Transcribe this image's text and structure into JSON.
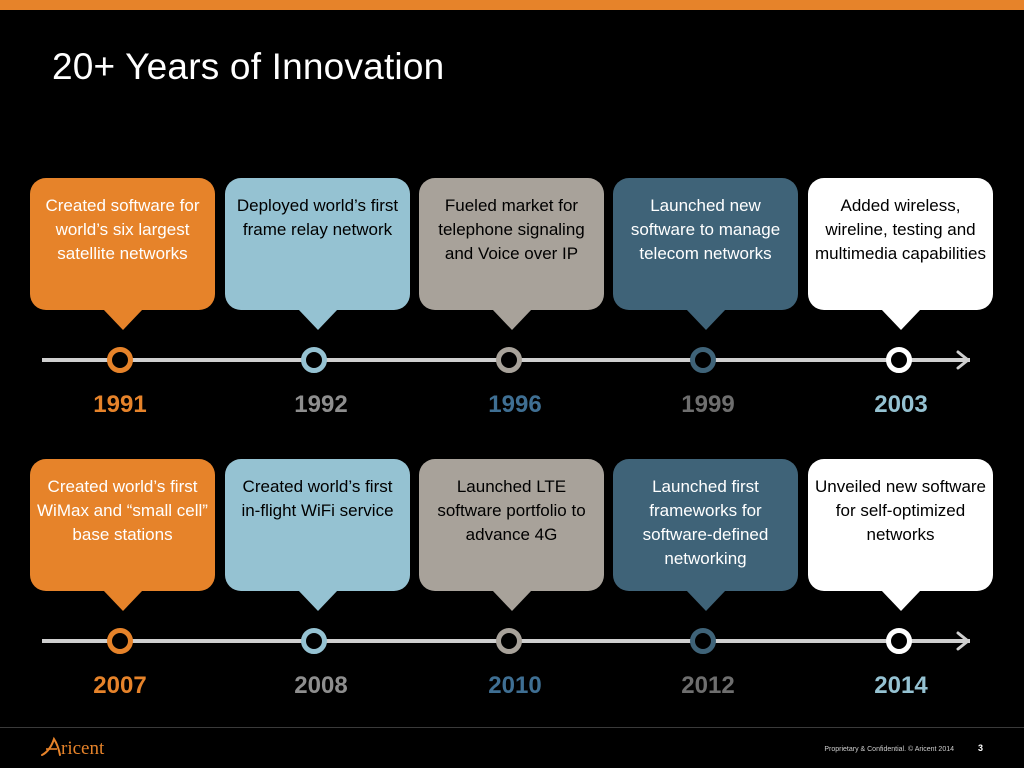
{
  "slide": {
    "title": "20+ Years of Innovation",
    "colors": {
      "accent_bar": "#e6832a",
      "orange": "#e6832a",
      "light_blue": "#95c2d2",
      "taupe": "#a8a29a",
      "slate": "#3f6378",
      "white": "#ffffff",
      "axis": "#cfcfcf"
    }
  },
  "timeline_rows": [
    {
      "milestones": [
        {
          "year": "1991",
          "text": "Created software for world’s six largest satellite networks",
          "bubble_color": "#e6832a",
          "text_color": "#ffffff",
          "year_color": "#e6832a"
        },
        {
          "year": "1992",
          "text": "Deployed world’s first frame relay network",
          "bubble_color": "#95c2d2",
          "text_color": "#000000",
          "year_color": "#8e8e8e"
        },
        {
          "year": "1996",
          "text": "Fueled market for telephone signaling and Voice over IP",
          "bubble_color": "#a8a29a",
          "text_color": "#000000",
          "year_color": "#3f6f93"
        },
        {
          "year": "1999",
          "text": "Launched new software to manage telecom networks",
          "bubble_color": "#3f6378",
          "text_color": "#ffffff",
          "year_color": "#6e6e6e"
        },
        {
          "year": "2003",
          "text": "Added wireless, wireline, testing and multimedia capabilities",
          "bubble_color": "#ffffff",
          "text_color": "#000000",
          "year_color": "#95c2d2"
        }
      ]
    },
    {
      "milestones": [
        {
          "year": "2007",
          "text": "Created world’s first WiMax and “small cell” base stations",
          "bubble_color": "#e6832a",
          "text_color": "#ffffff",
          "year_color": "#e6832a"
        },
        {
          "year": "2008",
          "text": "Created world’s first in-flight WiFi service",
          "bubble_color": "#95c2d2",
          "text_color": "#000000",
          "year_color": "#8e8e8e"
        },
        {
          "year": "2010",
          "text": "Launched LTE software portfolio to advance 4G",
          "bubble_color": "#a8a29a",
          "text_color": "#000000",
          "year_color": "#3f6f93"
        },
        {
          "year": "2012",
          "text": "Launched first frameworks for software-defined networking",
          "bubble_color": "#3f6378",
          "text_color": "#ffffff",
          "year_color": "#6e6e6e"
        },
        {
          "year": "2014",
          "text": "Unveiled new software for self-optimized networks",
          "bubble_color": "#ffffff",
          "text_color": "#000000",
          "year_color": "#95c2d2"
        }
      ]
    }
  ],
  "footer": {
    "logo_text": "Aricent",
    "confidential": "Proprietary & Confidential. © Aricent 2014",
    "page_number": "3"
  }
}
